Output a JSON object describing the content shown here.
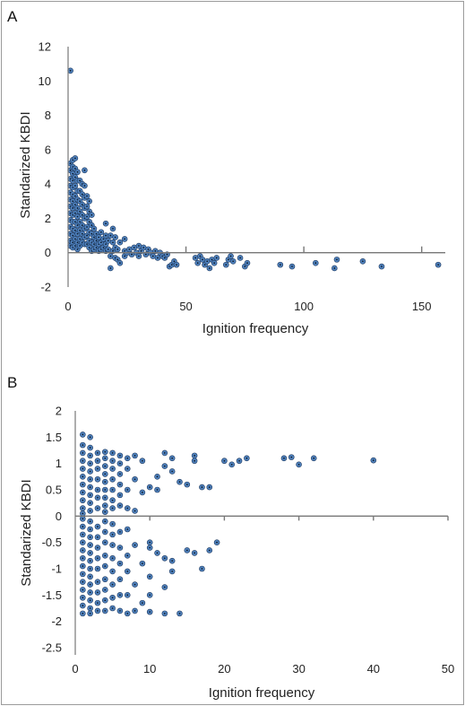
{
  "chart_data": [
    {
      "type": "scatter",
      "panel_label": "A",
      "xlabel": "Ignition frequency",
      "ylabel": "Standarized KBDI",
      "xlim": [
        0,
        160
      ],
      "ylim": [
        -2,
        12
      ],
      "xticks": [
        0,
        50,
        100,
        150
      ],
      "yticks": [
        -2,
        0,
        2,
        4,
        6,
        8,
        10,
        12
      ],
      "marker_color": "#4f81bd",
      "marker_edge": "#1f3a5f",
      "points": [
        [
          1,
          10.6
        ],
        [
          1,
          5.2
        ],
        [
          1,
          4.8
        ],
        [
          1,
          4.3
        ],
        [
          1,
          3.9
        ],
        [
          1,
          3.5
        ],
        [
          1,
          3.1
        ],
        [
          1,
          2.7
        ],
        [
          1,
          2.3
        ],
        [
          1,
          1.9
        ],
        [
          1,
          1.5
        ],
        [
          1,
          1.1
        ],
        [
          1,
          0.7
        ],
        [
          1,
          0.4
        ],
        [
          2,
          5.4
        ],
        [
          2,
          5.0
        ],
        [
          2,
          4.6
        ],
        [
          2,
          4.2
        ],
        [
          2,
          3.8
        ],
        [
          2,
          3.4
        ],
        [
          2,
          3.0
        ],
        [
          2,
          2.6
        ],
        [
          2,
          2.2
        ],
        [
          2,
          1.8
        ],
        [
          2,
          1.4
        ],
        [
          2,
          1.0
        ],
        [
          2,
          0.6
        ],
        [
          2,
          0.3
        ],
        [
          3,
          5.5
        ],
        [
          3,
          4.9
        ],
        [
          3,
          4.4
        ],
        [
          3,
          3.9
        ],
        [
          3,
          3.3
        ],
        [
          3,
          2.8
        ],
        [
          3,
          2.3
        ],
        [
          3,
          1.8
        ],
        [
          3,
          1.3
        ],
        [
          3,
          0.8
        ],
        [
          3,
          0.4
        ],
        [
          4,
          4.7
        ],
        [
          4,
          4.2
        ],
        [
          4,
          3.6
        ],
        [
          4,
          3.1
        ],
        [
          4,
          2.6
        ],
        [
          4,
          2.1
        ],
        [
          4,
          1.6
        ],
        [
          4,
          1.1
        ],
        [
          4,
          0.6
        ],
        [
          4,
          0.2
        ],
        [
          5,
          4.2
        ],
        [
          5,
          3.6
        ],
        [
          5,
          3.0
        ],
        [
          5,
          2.4
        ],
        [
          5,
          1.8
        ],
        [
          5,
          1.3
        ],
        [
          5,
          0.8
        ],
        [
          5,
          0.4
        ],
        [
          6,
          4.0
        ],
        [
          6,
          3.4
        ],
        [
          6,
          2.8
        ],
        [
          6,
          2.2
        ],
        [
          6,
          1.6
        ],
        [
          6,
          1.1
        ],
        [
          6,
          0.6
        ],
        [
          7,
          4.8
        ],
        [
          7,
          3.9
        ],
        [
          7,
          3.2
        ],
        [
          7,
          2.6
        ],
        [
          7,
          2.0
        ],
        [
          7,
          1.4
        ],
        [
          7,
          0.9
        ],
        [
          7,
          0.5
        ],
        [
          8,
          3.3
        ],
        [
          8,
          2.7
        ],
        [
          8,
          2.1
        ],
        [
          8,
          1.5
        ],
        [
          8,
          1.0
        ],
        [
          8,
          0.5
        ],
        [
          9,
          3.0
        ],
        [
          9,
          2.4
        ],
        [
          9,
          1.8
        ],
        [
          9,
          1.2
        ],
        [
          9,
          0.7
        ],
        [
          9,
          0.3
        ],
        [
          10,
          2.2
        ],
        [
          10,
          1.6
        ],
        [
          10,
          1.1
        ],
        [
          10,
          0.6
        ],
        [
          10,
          0.1
        ],
        [
          11,
          1.4
        ],
        [
          11,
          0.9
        ],
        [
          11,
          0.5
        ],
        [
          11,
          0.2
        ],
        [
          12,
          1.1
        ],
        [
          12,
          0.7
        ],
        [
          12,
          0.3
        ],
        [
          13,
          0.9
        ],
        [
          13,
          0.5
        ],
        [
          13,
          0.1
        ],
        [
          14,
          1.2
        ],
        [
          14,
          0.6
        ],
        [
          14,
          0.2
        ],
        [
          15,
          0.8
        ],
        [
          15,
          0.3
        ],
        [
          16,
          1.7
        ],
        [
          16,
          1.0
        ],
        [
          16,
          0.5
        ],
        [
          16,
          0.1
        ],
        [
          17,
          0.7
        ],
        [
          17,
          0.2
        ],
        [
          18,
          1.0
        ],
        [
          18,
          -0.2
        ],
        [
          18,
          -0.9
        ],
        [
          19,
          1.4
        ],
        [
          19,
          0.6
        ],
        [
          19,
          0.1
        ],
        [
          20,
          0.9
        ],
        [
          20,
          0.3
        ],
        [
          20,
          -0.3
        ],
        [
          21,
          0.2
        ],
        [
          21,
          -0.4
        ],
        [
          22,
          0.6
        ],
        [
          22,
          -0.6
        ],
        [
          24,
          0.8
        ],
        [
          24,
          0.1
        ],
        [
          24,
          -0.2
        ],
        [
          25,
          0.0
        ],
        [
          26,
          0.2
        ],
        [
          27,
          -0.1
        ],
        [
          28,
          0.3
        ],
        [
          29,
          0.0
        ],
        [
          30,
          0.4
        ],
        [
          30,
          -0.2
        ],
        [
          31,
          0.1
        ],
        [
          32,
          0.3
        ],
        [
          33,
          -0.1
        ],
        [
          34,
          0.2
        ],
        [
          35,
          0.0
        ],
        [
          36,
          -0.2
        ],
        [
          37,
          0.1
        ],
        [
          38,
          -0.3
        ],
        [
          39,
          0.0
        ],
        [
          40,
          -0.2
        ],
        [
          41,
          -0.3
        ],
        [
          42,
          -0.1
        ],
        [
          43,
          -0.8
        ],
        [
          44,
          -0.7
        ],
        [
          45,
          -0.5
        ],
        [
          46,
          -0.7
        ],
        [
          54,
          -0.3
        ],
        [
          55,
          -0.6
        ],
        [
          56,
          -0.2
        ],
        [
          57,
          -0.4
        ],
        [
          58,
          -0.7
        ],
        [
          59,
          -0.5
        ],
        [
          60,
          -0.9
        ],
        [
          61,
          -0.4
        ],
        [
          62,
          -0.6
        ],
        [
          63,
          -0.3
        ],
        [
          67,
          -0.7
        ],
        [
          68,
          -0.4
        ],
        [
          69,
          -0.2
        ],
        [
          70,
          -0.5
        ],
        [
          73,
          -0.3
        ],
        [
          75,
          -0.8
        ],
        [
          76,
          -0.6
        ],
        [
          90,
          -0.7
        ],
        [
          95,
          -0.8
        ],
        [
          105,
          -0.6
        ],
        [
          113,
          -0.9
        ],
        [
          114,
          -0.4
        ],
        [
          125,
          -0.5
        ],
        [
          133,
          -0.8
        ],
        [
          157,
          -0.7
        ]
      ]
    },
    {
      "type": "scatter",
      "panel_label": "B",
      "xlabel": "Ignition frequency",
      "ylabel": "Standarized KBDI",
      "xlim": [
        0,
        50
      ],
      "ylim": [
        -2.5,
        2
      ],
      "xticks": [
        0,
        10,
        20,
        30,
        40,
        50
      ],
      "yticks": [
        -2.5,
        -2,
        -1.5,
        -1,
        -0.5,
        0,
        0.5,
        1,
        1.5,
        2
      ],
      "ytick_labels": [
        "-2.5",
        "-2",
        "-1.5",
        "-1",
        "-0.5",
        "0",
        "0.5",
        "1",
        "1.5",
        "2"
      ],
      "marker_color": "#4f81bd",
      "marker_edge": "#1f3a5f",
      "points": [
        [
          1,
          1.55
        ],
        [
          1,
          1.35
        ],
        [
          1,
          1.2
        ],
        [
          1,
          1.05
        ],
        [
          1,
          0.9
        ],
        [
          1,
          0.75
        ],
        [
          1,
          0.6
        ],
        [
          1,
          0.45
        ],
        [
          1,
          0.3
        ],
        [
          1,
          0.15
        ],
        [
          1,
          0.05
        ],
        [
          1,
          -0.05
        ],
        [
          1,
          -0.2
        ],
        [
          1,
          -0.35
        ],
        [
          1,
          -0.5
        ],
        [
          1,
          -0.65
        ],
        [
          1,
          -0.8
        ],
        [
          1,
          -0.95
        ],
        [
          1,
          -1.1
        ],
        [
          1,
          -1.25
        ],
        [
          1,
          -1.4
        ],
        [
          1,
          -1.55
        ],
        [
          1,
          -1.7
        ],
        [
          1,
          -1.85
        ],
        [
          2,
          1.5
        ],
        [
          2,
          1.3
        ],
        [
          2,
          1.15
        ],
        [
          2,
          1.0
        ],
        [
          2,
          0.85
        ],
        [
          2,
          0.7
        ],
        [
          2,
          0.55
        ],
        [
          2,
          0.4
        ],
        [
          2,
          0.25
        ],
        [
          2,
          0.1
        ],
        [
          2,
          -0.1
        ],
        [
          2,
          -0.25
        ],
        [
          2,
          -0.4
        ],
        [
          2,
          -0.55
        ],
        [
          2,
          -0.7
        ],
        [
          2,
          -0.85
        ],
        [
          2,
          -1.0
        ],
        [
          2,
          -1.15
        ],
        [
          2,
          -1.3
        ],
        [
          2,
          -1.45
        ],
        [
          2,
          -1.6
        ],
        [
          2,
          -1.75
        ],
        [
          2,
          -1.85
        ],
        [
          3,
          1.2
        ],
        [
          3,
          1.05
        ],
        [
          3,
          0.9
        ],
        [
          3,
          0.7
        ],
        [
          3,
          0.5
        ],
        [
          3,
          0.35
        ],
        [
          3,
          0.15
        ],
        [
          3,
          -0.2
        ],
        [
          3,
          -0.4
        ],
        [
          3,
          -0.6
        ],
        [
          3,
          -0.8
        ],
        [
          3,
          -1.0
        ],
        [
          3,
          -1.25
        ],
        [
          3,
          -1.45
        ],
        [
          3,
          -1.65
        ],
        [
          3,
          -1.8
        ],
        [
          4,
          1.22
        ],
        [
          4,
          1.1
        ],
        [
          4,
          0.95
        ],
        [
          4,
          0.8
        ],
        [
          4,
          0.65
        ],
        [
          4,
          0.5
        ],
        [
          4,
          0.35
        ],
        [
          4,
          0.2
        ],
        [
          4,
          0.08
        ],
        [
          4,
          -0.1
        ],
        [
          4,
          -0.3
        ],
        [
          4,
          -0.5
        ],
        [
          4,
          -0.75
        ],
        [
          4,
          -0.95
        ],
        [
          4,
          -1.2
        ],
        [
          4,
          -1.4
        ],
        [
          4,
          -1.6
        ],
        [
          4,
          -1.8
        ],
        [
          5,
          1.2
        ],
        [
          5,
          1.05
        ],
        [
          5,
          0.9
        ],
        [
          5,
          0.7
        ],
        [
          5,
          0.5
        ],
        [
          5,
          0.3
        ],
        [
          5,
          0.15
        ],
        [
          5,
          -0.15
        ],
        [
          5,
          -0.35
        ],
        [
          5,
          -0.55
        ],
        [
          5,
          -0.8
        ],
        [
          5,
          -1.05
        ],
        [
          5,
          -1.3
        ],
        [
          5,
          -1.55
        ],
        [
          5,
          -1.75
        ],
        [
          6,
          1.15
        ],
        [
          6,
          1.0
        ],
        [
          6,
          0.8
        ],
        [
          6,
          0.6
        ],
        [
          6,
          0.4
        ],
        [
          6,
          0.2
        ],
        [
          6,
          -0.3
        ],
        [
          6,
          -0.6
        ],
        [
          6,
          -0.9
        ],
        [
          6,
          -1.2
        ],
        [
          6,
          -1.5
        ],
        [
          6,
          -1.8
        ],
        [
          7,
          1.1
        ],
        [
          7,
          0.9
        ],
        [
          7,
          0.5
        ],
        [
          7,
          0.15
        ],
        [
          7,
          -0.25
        ],
        [
          7,
          -0.75
        ],
        [
          7,
          -1.05
        ],
        [
          7,
          -1.5
        ],
        [
          7,
          -1.85
        ],
        [
          8,
          1.15
        ],
        [
          8,
          0.7
        ],
        [
          8,
          0.1
        ],
        [
          8,
          -0.55
        ],
        [
          8,
          -1.3
        ],
        [
          8,
          -1.8
        ],
        [
          9,
          1.05
        ],
        [
          9,
          0.45
        ],
        [
          9,
          -0.9
        ],
        [
          9,
          -1.65
        ],
        [
          10,
          0.55
        ],
        [
          10,
          -0.5
        ],
        [
          10,
          -0.6
        ],
        [
          10,
          -1.15
        ],
        [
          10,
          -1.5
        ],
        [
          10,
          -1.82
        ],
        [
          11,
          0.75
        ],
        [
          11,
          0.5
        ],
        [
          11,
          -0.7
        ],
        [
          12,
          1.2
        ],
        [
          12,
          0.95
        ],
        [
          12,
          -0.8
        ],
        [
          12,
          -1.35
        ],
        [
          12,
          -1.85
        ],
        [
          13,
          1.1
        ],
        [
          13,
          0.85
        ],
        [
          13,
          -0.85
        ],
        [
          13,
          -1.05
        ],
        [
          14,
          0.65
        ],
        [
          14,
          -1.85
        ],
        [
          15,
          0.6
        ],
        [
          15,
          -0.65
        ],
        [
          16,
          1.15
        ],
        [
          16,
          1.05
        ],
        [
          16,
          -0.7
        ],
        [
          17,
          0.55
        ],
        [
          17,
          -1.0
        ],
        [
          18,
          0.55
        ],
        [
          18,
          -0.65
        ],
        [
          19,
          -0.5
        ],
        [
          20,
          1.05
        ],
        [
          21,
          0.98
        ],
        [
          22,
          1.05
        ],
        [
          23,
          1.1
        ],
        [
          28,
          1.1
        ],
        [
          29,
          1.12
        ],
        [
          30,
          0.98
        ],
        [
          32,
          1.1
        ],
        [
          40,
          1.06
        ]
      ]
    }
  ]
}
